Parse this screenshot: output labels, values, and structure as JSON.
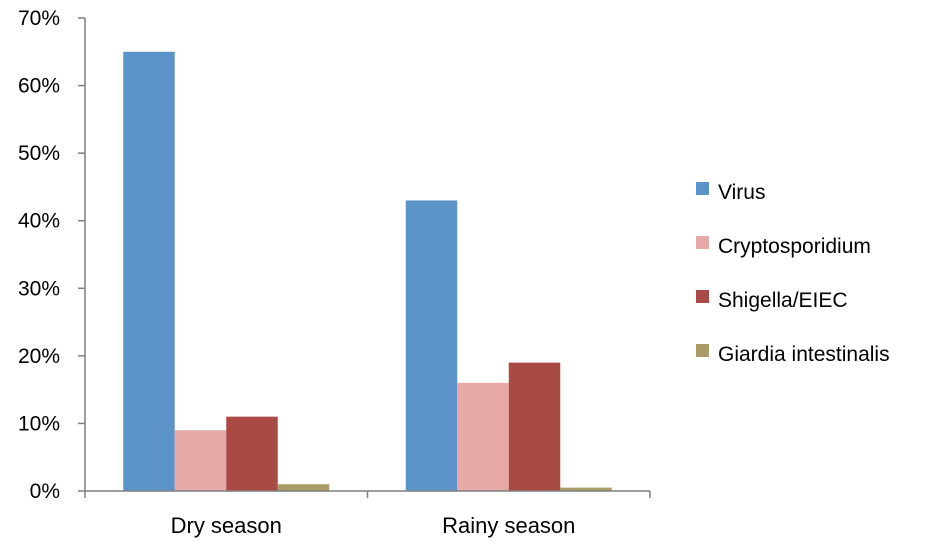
{
  "chart_data": {
    "type": "bar",
    "categories": [
      "Dry season",
      "Rainy season"
    ],
    "series": [
      {
        "name": "Virus",
        "values": [
          65,
          43
        ],
        "color": "#5B93C8"
      },
      {
        "name": "Cryptosporidium",
        "values": [
          9,
          16
        ],
        "color": "#E6A9A7"
      },
      {
        "name": "Shigella/EIEC",
        "values": [
          11,
          19
        ],
        "color": "#A94A45"
      },
      {
        "name": "Giardia intestinalis",
        "values": [
          1,
          0.5
        ],
        "color": "#A89B68"
      }
    ],
    "yticks": [
      "0%",
      "10%",
      "20%",
      "30%",
      "40%",
      "50%",
      "60%",
      "70%"
    ],
    "ylim": [
      0,
      70
    ],
    "y_unit": "%",
    "grid": false,
    "legend": "right",
    "title": "",
    "xlabel": "",
    "ylabel": ""
  }
}
